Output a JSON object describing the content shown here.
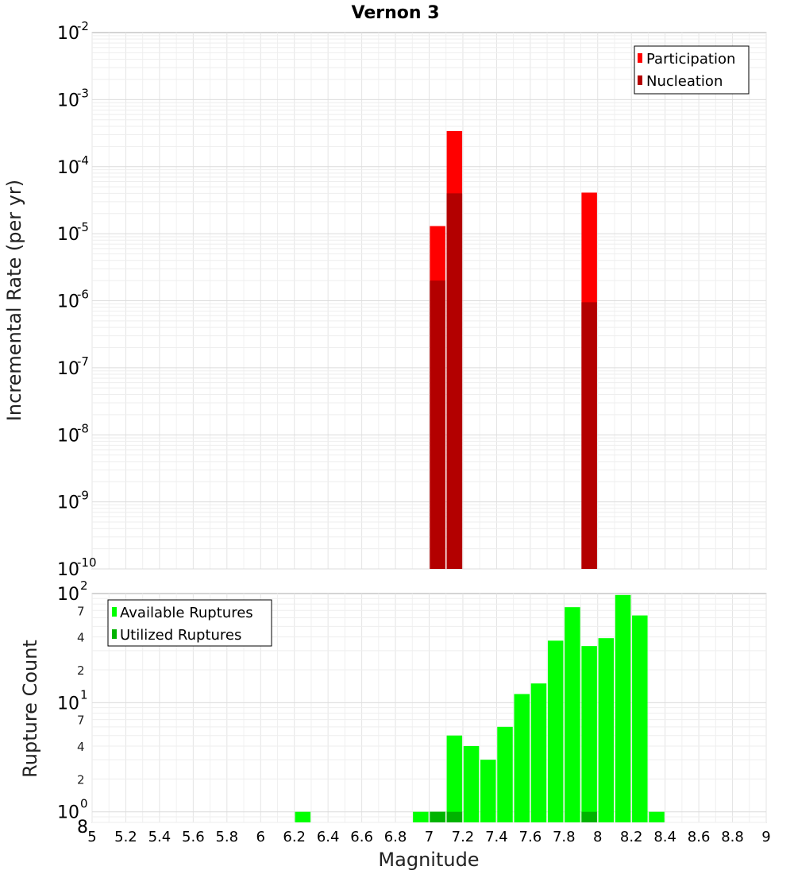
{
  "chart_data": [
    {
      "type": "bar",
      "title": "Vernon 3",
      "xlabel": "",
      "ylabel": "Incremental Rate (per yr)",
      "xlim": [
        5,
        9
      ],
      "ylim": [
        1e-10,
        0.01
      ],
      "yscale": "log",
      "y_tick_labels": [
        {
          "base": "10",
          "exp": "-2"
        },
        {
          "base": "10",
          "exp": "-3"
        },
        {
          "base": "10",
          "exp": "-4"
        },
        {
          "base": "10",
          "exp": "-5"
        },
        {
          "base": "10",
          "exp": "-6"
        },
        {
          "base": "10",
          "exp": "-7"
        },
        {
          "base": "10",
          "exp": "-8"
        },
        {
          "base": "10",
          "exp": "-9"
        },
        {
          "base": "10",
          "exp": "-10"
        }
      ],
      "legend_position": "top-right",
      "series": [
        {
          "name": "Participation",
          "color": "#ff0000",
          "x": [
            7.05,
            7.15,
            7.95
          ],
          "values": [
            1.3e-05,
            0.00034,
            4.1e-05
          ]
        },
        {
          "name": "Nucleation",
          "color": "#b30000",
          "x": [
            7.05,
            7.15,
            7.95
          ],
          "values": [
            2e-06,
            4e-05,
            9.5e-07
          ]
        }
      ]
    },
    {
      "type": "bar",
      "title": "",
      "xlabel": "Magnitude",
      "ylabel": "Rupture Count",
      "xlim": [
        5,
        9
      ],
      "ylim": [
        0.8,
        100
      ],
      "yscale": "log",
      "x_tick_labels": [
        "5",
        "5.2",
        "5.4",
        "5.6",
        "5.8",
        "6",
        "6.2",
        "6.4",
        "6.6",
        "6.8",
        "7",
        "7.2",
        "7.4",
        "7.6",
        "7.8",
        "8",
        "8.2",
        "8.4",
        "8.6",
        "8.8",
        "9"
      ],
      "y_major_tick_labels": [
        {
          "base": "10",
          "exp": "2",
          "value": 100
        },
        {
          "base": "10",
          "exp": "1",
          "value": 10
        },
        {
          "base": "10",
          "exp": "0",
          "value": 1
        }
      ],
      "y_minor_tick_labels": [
        {
          "label": "7",
          "value": 70
        },
        {
          "label": "4",
          "value": 40
        },
        {
          "label": "2",
          "value": 20
        },
        {
          "label": "7",
          "value": 7
        },
        {
          "label": "4",
          "value": 4
        },
        {
          "label": "2",
          "value": 2
        },
        {
          "label": "8",
          "value": 0.8
        }
      ],
      "legend_position": "top-left",
      "series": [
        {
          "name": "Available Ruptures",
          "color": "#00ff00",
          "x": [
            6.25,
            6.95,
            7.05,
            7.15,
            7.25,
            7.35,
            7.45,
            7.55,
            7.65,
            7.75,
            7.85,
            7.95,
            8.05,
            8.15,
            8.25,
            8.35
          ],
          "values": [
            1,
            1,
            1,
            5,
            4,
            3,
            6,
            12,
            15,
            37,
            75,
            33,
            39,
            97,
            63,
            1
          ]
        },
        {
          "name": "Utilized Ruptures",
          "color": "#00b300",
          "x": [
            7.05,
            7.15,
            7.95
          ],
          "values": [
            1,
            1,
            1
          ]
        }
      ]
    }
  ]
}
